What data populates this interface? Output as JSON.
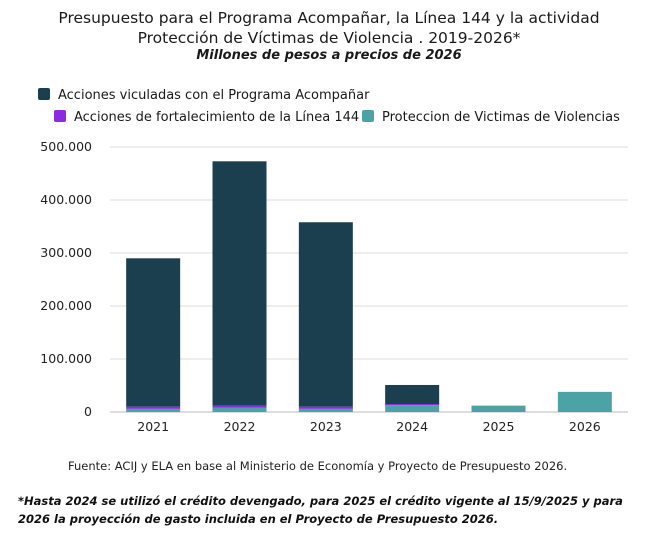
{
  "title_line1": "Presupuesto para el Programa Acompañar, la Línea 144 y la actividad",
  "title_line2": "Protección de Víctimas de Violencia . 2019-2026*",
  "subtitle": "Millones de pesos a precios de 2026",
  "source": "Fuente: ACIJ y ELA en base al Ministerio de Economía y Proyecto de Presupuesto 2026.",
  "note": "*Hasta 2024 se utilizó el crédito devengado, para 2025 el crédito vigente al 15/9/2025 y para 2026 la proyección de gasto incluida en el Proyecto de Presupuesto 2026.",
  "chart_data": {
    "type": "bar",
    "stacked": true,
    "categories": [
      "2021",
      "2022",
      "2023",
      "2024",
      "2025",
      "2026"
    ],
    "series": [
      {
        "name": "Protección de Victimas de Violencias",
        "color": "#4ca3a6",
        "values": [
          6000,
          8000,
          6000,
          13000,
          12000,
          38000
        ]
      },
      {
        "name": "Acciones de fortalecimiento de la Línea 144",
        "color": "#8a2be2",
        "values": [
          4000,
          4000,
          4000,
          2000,
          0,
          0
        ]
      },
      {
        "name": "Acciones viculadas con el Programa Acompañar",
        "color": "#1c3f4f",
        "values": [
          280000,
          461000,
          348000,
          36000,
          0,
          0
        ]
      }
    ],
    "legend": [
      {
        "label": "Acciones viculadas con el Programa Acompañar",
        "color": "#1c3f4f"
      },
      {
        "label": "Acciones de fortalecimiento de la Línea 144",
        "color": "#8a2be2"
      },
      {
        "label": "Proteccion de Victimas de Violencias",
        "color": "#4ca3a6"
      }
    ],
    "legend_position": "top-left",
    "ylim": [
      0,
      500000
    ],
    "yticks": [
      0,
      100000,
      200000,
      300000,
      400000,
      500000
    ],
    "ytick_labels": [
      "0",
      "100.000",
      "200.000",
      "300.000",
      "400.000",
      "500.000"
    ],
    "grid": true
  }
}
